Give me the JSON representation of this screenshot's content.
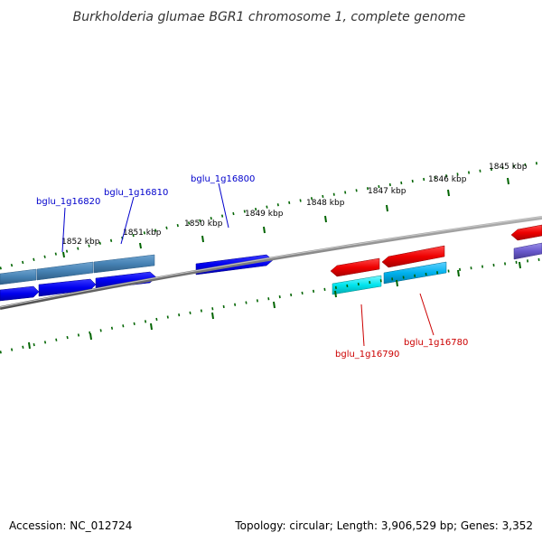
{
  "title": "Burkholderia glumae BGR1 chromosome 1, complete genome",
  "footer": {
    "accession": "Accession: NC_012724",
    "stats": "Topology: circular; Length: 3,906,529 bp; Genes: 3,352"
  },
  "scale": {
    "labels": [
      "1852 kbp",
      "1851 kbp",
      "1850 kbp",
      "1849 kbp",
      "1848 kbp",
      "1847 kbp",
      "1846 kbp",
      "1845 kbp"
    ]
  },
  "genes": [
    {
      "id": "bglu_1g16820",
      "color": "#0000cc"
    },
    {
      "id": "bglu_1g16810",
      "color": "#0000cc"
    },
    {
      "id": "bglu_1g16800",
      "color": "#0000cc"
    },
    {
      "id": "bglu_1g16790",
      "color": "#cc0000"
    },
    {
      "id": "bglu_1g16780",
      "color": "#cc0000"
    }
  ],
  "colors": {
    "forward_cds": "#0000ee",
    "reverse_cds": "#ee0000",
    "forward_feature": "#4682b4",
    "reverse_feature_a": "#00e5ee",
    "reverse_feature_b": "#00b2ee",
    "feature_purple": "#6a5acd",
    "backbone": "#808080",
    "ticks": "#006400"
  }
}
